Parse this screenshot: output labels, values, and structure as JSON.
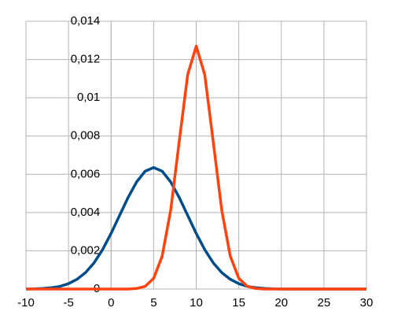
{
  "chart_data": {
    "type": "line",
    "x": [
      -10,
      -9,
      -8,
      -7,
      -6,
      -5,
      -4,
      -3,
      -2,
      -1,
      0,
      1,
      2,
      3,
      4,
      5,
      6,
      7,
      8,
      9,
      10,
      11,
      12,
      13,
      14,
      15,
      16,
      17,
      18,
      19,
      20,
      21,
      22,
      23,
      24,
      25,
      26,
      27,
      28,
      29,
      30
    ],
    "series": [
      {
        "color": "#004d8c",
        "values": [
          0,
          1e-05,
          3e-05,
          7e-05,
          0.00014,
          0.00028,
          0.00051,
          0.00086,
          0.00137,
          0.00206,
          0.00291,
          0.00385,
          0.00479,
          0.0056,
          0.00616,
          0.00635,
          0.00616,
          0.0056,
          0.00479,
          0.00385,
          0.00291,
          0.00206,
          0.00137,
          0.00086,
          0.00051,
          0.00028,
          0.00014,
          7e-05,
          3e-05,
          1e-05,
          0,
          0,
          0,
          0,
          0,
          0,
          0,
          0,
          0,
          0,
          0
        ]
      },
      {
        "color": "#ff420e",
        "values": [
          0,
          0,
          0,
          0,
          0,
          0,
          0,
          0,
          0,
          0,
          0,
          0,
          0,
          3e-05,
          0.00014,
          0.00056,
          0.00172,
          0.00412,
          0.0077,
          0.01121,
          0.0127,
          0.01121,
          0.0077,
          0.00412,
          0.00172,
          0.00056,
          0.00014,
          3e-05,
          0,
          0,
          0,
          0,
          0,
          0,
          0,
          0,
          0,
          0,
          0,
          0,
          0
        ]
      }
    ],
    "xlim": [
      -10,
      30
    ],
    "xticks": [
      -10,
      -5,
      0,
      5,
      10,
      15,
      20,
      25,
      30
    ],
    "ylim": [
      0,
      0.014
    ],
    "yticks": [
      0,
      {
        "value": 0.002,
        "label": "0,002"
      },
      {
        "value": 0.004,
        "label": "0,004"
      },
      {
        "value": 0.006,
        "label": "0,006"
      },
      {
        "value": 0.008,
        "label": "0,008"
      },
      {
        "value": 0.01,
        "label": "0,01"
      },
      {
        "value": 0.012,
        "label": "0,012"
      },
      {
        "value": 0.014,
        "label": "0,014"
      }
    ],
    "grid": true
  }
}
